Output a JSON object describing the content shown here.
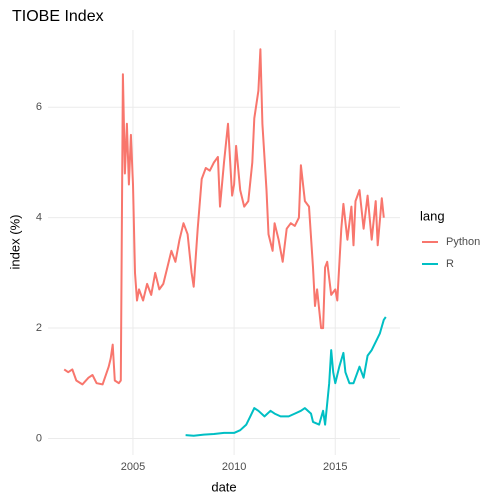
{
  "chart_data": {
    "type": "line",
    "title": "TIOBE Index",
    "x_label": "date",
    "y_label": "index (%)",
    "legend_title": "lang",
    "legend": "right",
    "grid": true,
    "xlim": [
      2000.8,
      2018.2
    ],
    "xticks": [
      2005,
      2010,
      2015
    ],
    "ylim": [
      -0.3,
      7.4
    ],
    "yticks": [
      0,
      2,
      4,
      6
    ],
    "series": [
      {
        "name": "Python",
        "color": "#F8766D",
        "x": [
          2001.6,
          2001.8,
          2002.0,
          2002.2,
          2002.5,
          2002.8,
          2003.0,
          2003.2,
          2003.5,
          2003.8,
          2003.9,
          2004.0,
          2004.1,
          2004.3,
          2004.4,
          2004.5,
          2004.6,
          2004.7,
          2004.8,
          2004.9,
          2005.0,
          2005.1,
          2005.2,
          2005.3,
          2005.5,
          2005.7,
          2005.9,
          2006.1,
          2006.3,
          2006.5,
          2006.7,
          2006.9,
          2007.1,
          2007.3,
          2007.5,
          2007.7,
          2007.9,
          2008.0,
          2008.2,
          2008.4,
          2008.6,
          2008.8,
          2009.0,
          2009.2,
          2009.3,
          2009.5,
          2009.7,
          2009.9,
          2010.0,
          2010.1,
          2010.3,
          2010.5,
          2010.7,
          2010.9,
          2011.0,
          2011.2,
          2011.3,
          2011.4,
          2011.6,
          2011.7,
          2011.9,
          2012.0,
          2012.2,
          2012.4,
          2012.6,
          2012.8,
          2013.0,
          2013.2,
          2013.3,
          2013.5,
          2013.7,
          2013.9,
          2014.0,
          2014.1,
          2014.3,
          2014.4,
          2014.5,
          2014.6,
          2014.8,
          2015.0,
          2015.1,
          2015.3,
          2015.4,
          2015.6,
          2015.8,
          2015.9,
          2016.0,
          2016.2,
          2016.4,
          2016.6,
          2016.8,
          2017.0,
          2017.1,
          2017.3,
          2017.4
        ],
        "values": [
          1.25,
          1.2,
          1.25,
          1.05,
          0.98,
          1.1,
          1.15,
          1.0,
          0.98,
          1.3,
          1.45,
          1.7,
          1.05,
          1.0,
          1.05,
          6.6,
          4.8,
          5.7,
          4.6,
          5.5,
          4.6,
          3.0,
          2.5,
          2.7,
          2.5,
          2.8,
          2.6,
          3.0,
          2.7,
          2.8,
          3.1,
          3.4,
          3.2,
          3.6,
          3.9,
          3.7,
          3.0,
          2.75,
          3.8,
          4.7,
          4.9,
          4.85,
          5.0,
          5.1,
          4.2,
          5.0,
          5.7,
          4.4,
          4.6,
          5.3,
          4.5,
          4.2,
          4.3,
          5.0,
          5.8,
          6.3,
          7.05,
          5.7,
          4.5,
          3.7,
          3.4,
          3.9,
          3.6,
          3.2,
          3.8,
          3.9,
          3.85,
          4.0,
          4.95,
          4.3,
          4.2,
          3.1,
          2.4,
          2.7,
          2.0,
          2.0,
          3.1,
          3.2,
          2.6,
          2.7,
          2.5,
          3.8,
          4.25,
          3.6,
          4.2,
          3.5,
          4.3,
          4.5,
          3.8,
          4.4,
          3.6,
          4.3,
          3.5,
          4.35,
          4.0
        ]
      },
      {
        "name": "R",
        "color": "#00BFC4",
        "x": [
          2007.6,
          2008.0,
          2008.5,
          2009.0,
          2009.5,
          2010.0,
          2010.3,
          2010.6,
          2010.8,
          2011.0,
          2011.2,
          2011.5,
          2011.8,
          2012.0,
          2012.3,
          2012.7,
          2013.0,
          2013.3,
          2013.5,
          2013.8,
          2013.9,
          2014.2,
          2014.4,
          2014.5,
          2014.7,
          2014.8,
          2014.9,
          2015.0,
          2015.2,
          2015.4,
          2015.5,
          2015.7,
          2015.9,
          2016.2,
          2016.4,
          2016.6,
          2016.8,
          2017.0,
          2017.2,
          2017.4,
          2017.5
        ],
        "values": [
          0.06,
          0.05,
          0.07,
          0.08,
          0.1,
          0.1,
          0.15,
          0.25,
          0.4,
          0.55,
          0.5,
          0.4,
          0.5,
          0.45,
          0.4,
          0.4,
          0.45,
          0.5,
          0.55,
          0.45,
          0.3,
          0.25,
          0.5,
          0.25,
          1.0,
          1.6,
          1.2,
          1.0,
          1.3,
          1.55,
          1.2,
          1.0,
          1.0,
          1.3,
          1.1,
          1.5,
          1.6,
          1.75,
          1.9,
          2.15,
          2.2
        ]
      }
    ]
  }
}
